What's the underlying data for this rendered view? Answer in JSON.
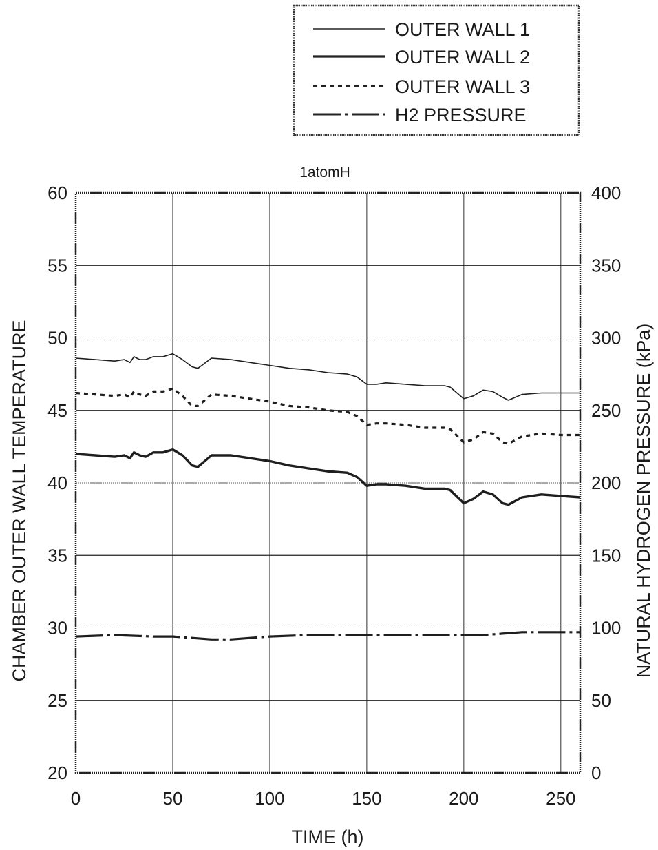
{
  "chart_data": {
    "type": "line",
    "title": "1atomH",
    "xlabel": "TIME (h)",
    "ylabel_left": "CHAMBER OUTER WALL TEMPERATURE",
    "ylabel_right": "NATURAL HYDROGEN PRESSURE (kPa)",
    "xlim": [
      0,
      260
    ],
    "ylim_left": [
      20,
      60
    ],
    "ylim_right": [
      0,
      400
    ],
    "x_ticks": [
      "0",
      "50",
      "100",
      "150",
      "200",
      "250"
    ],
    "y_left_ticks": [
      "20",
      "25",
      "30",
      "35",
      "40",
      "45",
      "50",
      "55",
      "60"
    ],
    "y_right_ticks": [
      "0",
      "50",
      "100",
      "150",
      "200",
      "250",
      "300",
      "350",
      "400"
    ],
    "grid": true,
    "legend_position": "top-right, above plot",
    "series": [
      {
        "name": "OUTER WALL 1",
        "axis": "left",
        "style": "solid-thin",
        "x": [
          0,
          10,
          20,
          25,
          28,
          30,
          33,
          36,
          40,
          45,
          50,
          55,
          60,
          63,
          70,
          80,
          90,
          100,
          110,
          120,
          130,
          140,
          145,
          150,
          155,
          160,
          170,
          180,
          190,
          193,
          200,
          205,
          210,
          215,
          220,
          223,
          230,
          240,
          250,
          260
        ],
        "values": [
          48.6,
          48.5,
          48.4,
          48.5,
          48.3,
          48.7,
          48.5,
          48.5,
          48.7,
          48.7,
          48.9,
          48.5,
          48.0,
          47.9,
          48.6,
          48.5,
          48.3,
          48.1,
          47.9,
          47.8,
          47.6,
          47.5,
          47.3,
          46.8,
          46.8,
          46.9,
          46.8,
          46.7,
          46.7,
          46.6,
          45.8,
          46.0,
          46.4,
          46.3,
          45.9,
          45.7,
          46.1,
          46.2,
          46.2,
          46.2
        ]
      },
      {
        "name": "OUTER WALL 2",
        "axis": "left",
        "style": "solid-thick",
        "x": [
          0,
          10,
          20,
          25,
          28,
          30,
          33,
          36,
          40,
          45,
          50,
          55,
          60,
          63,
          70,
          80,
          90,
          100,
          110,
          120,
          130,
          140,
          145,
          150,
          155,
          160,
          170,
          180,
          190,
          193,
          200,
          205,
          210,
          215,
          220,
          223,
          230,
          240,
          250,
          260
        ],
        "values": [
          42.0,
          41.9,
          41.8,
          41.9,
          41.7,
          42.1,
          41.9,
          41.8,
          42.1,
          42.1,
          42.3,
          41.9,
          41.2,
          41.1,
          41.9,
          41.9,
          41.7,
          41.5,
          41.2,
          41.0,
          40.8,
          40.7,
          40.4,
          39.8,
          39.9,
          39.9,
          39.8,
          39.6,
          39.6,
          39.5,
          38.6,
          38.9,
          39.4,
          39.2,
          38.6,
          38.5,
          39.0,
          39.2,
          39.1,
          39.0
        ]
      },
      {
        "name": "OUTER WALL 3",
        "axis": "left",
        "style": "dashed",
        "x": [
          0,
          10,
          20,
          25,
          28,
          30,
          33,
          36,
          40,
          45,
          50,
          55,
          60,
          63,
          70,
          80,
          90,
          100,
          110,
          120,
          130,
          140,
          145,
          150,
          155,
          160,
          170,
          180,
          190,
          193,
          200,
          205,
          210,
          215,
          220,
          223,
          230,
          240,
          250,
          260
        ],
        "values": [
          46.2,
          46.1,
          46.0,
          46.1,
          45.9,
          46.3,
          46.1,
          46.0,
          46.3,
          46.3,
          46.5,
          46.0,
          45.3,
          45.3,
          46.1,
          46.0,
          45.8,
          45.6,
          45.3,
          45.2,
          45.0,
          44.9,
          44.6,
          44.0,
          44.1,
          44.1,
          44.0,
          43.8,
          43.8,
          43.7,
          42.8,
          43.0,
          43.5,
          43.4,
          42.8,
          42.7,
          43.2,
          43.4,
          43.3,
          43.3
        ]
      },
      {
        "name": "H2 PRESSURE",
        "axis": "right",
        "style": "dash-dot",
        "x": [
          0,
          20,
          40,
          50,
          60,
          70,
          80,
          100,
          120,
          140,
          160,
          180,
          200,
          210,
          220,
          230,
          240,
          250,
          260
        ],
        "values": [
          94,
          95,
          94,
          94,
          93,
          92,
          92,
          94,
          95,
          95,
          95,
          95,
          95,
          95,
          96,
          97,
          97,
          97,
          97
        ]
      }
    ]
  }
}
